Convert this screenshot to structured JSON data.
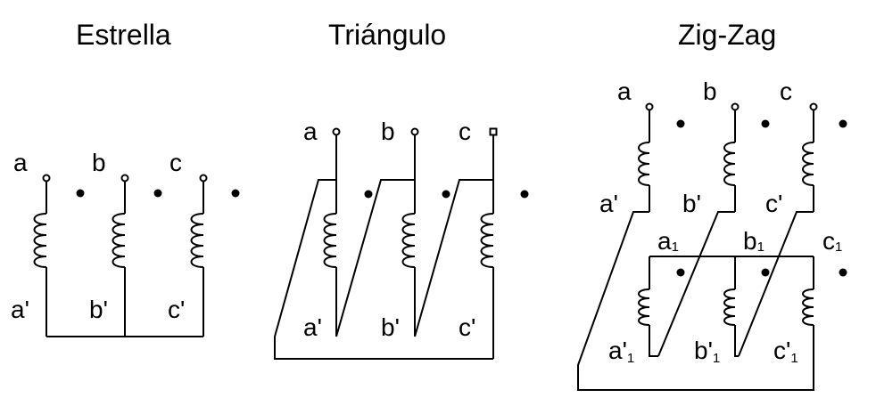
{
  "diagrams": [
    {
      "title": "Estrella",
      "top_labels": [
        "a",
        "b",
        "c"
      ],
      "bottom_labels": [
        "a'",
        "b'",
        "c'"
      ]
    },
    {
      "title": "Triángulo",
      "top_labels": [
        "a",
        "b",
        "c"
      ],
      "bottom_labels": [
        "a'",
        "b'",
        "c'"
      ]
    },
    {
      "title": "Zig-Zag",
      "top_labels": [
        "a",
        "b",
        "c"
      ],
      "mid_labels": [
        "a'",
        "b'",
        "c'"
      ],
      "sub_top_labels": [
        {
          "base": "a",
          "sub": "1"
        },
        {
          "base": "b",
          "sub": "1"
        },
        {
          "base": "c",
          "sub": "1"
        }
      ],
      "sub_bottom_labels": [
        {
          "base": "a'",
          "sub": "1"
        },
        {
          "base": "b'",
          "sub": "1"
        },
        {
          "base": "c'",
          "sub": "1"
        }
      ]
    }
  ]
}
